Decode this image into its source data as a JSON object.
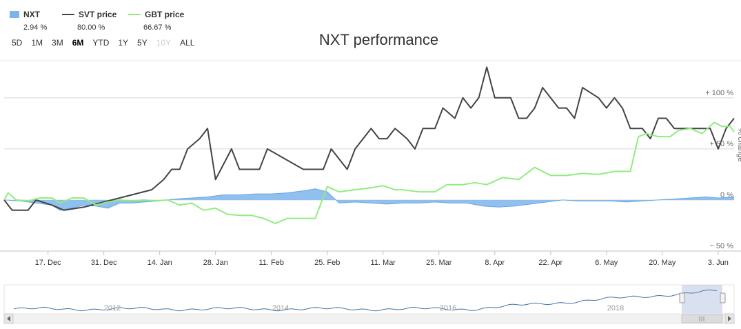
{
  "chart_data": {
    "type": "line",
    "title": "NXT performance",
    "ylabel": "% change",
    "ylim": [
      -50,
      135
    ],
    "y_ticks": [
      "− 50 %",
      "0 %",
      "+ 50 %",
      "+ 100 %"
    ],
    "y_tick_values": [
      -50,
      0,
      50,
      100
    ],
    "x_range": [
      "2017-12-06",
      "2018-06-07"
    ],
    "x_ticks": [
      {
        "label": "17. Dec",
        "date": "2017-12-17"
      },
      {
        "label": "31. Dec",
        "date": "2017-12-31"
      },
      {
        "label": "14. Jan",
        "date": "2018-01-14"
      },
      {
        "label": "28. Jan",
        "date": "2018-01-28"
      },
      {
        "label": "11. Feb",
        "date": "2018-02-11"
      },
      {
        "label": "25. Feb",
        "date": "2018-02-25"
      },
      {
        "label": "11. Mar",
        "date": "2018-03-11"
      },
      {
        "label": "25. Mar",
        "date": "2018-03-25"
      },
      {
        "label": "8. Apr",
        "date": "2018-04-08"
      },
      {
        "label": "22. Apr",
        "date": "2018-04-22"
      },
      {
        "label": "6. May",
        "date": "2018-05-06"
      },
      {
        "label": "20. May",
        "date": "2018-05-20"
      },
      {
        "label": "3. Jun",
        "date": "2018-06-03"
      }
    ],
    "grid": true,
    "legend_position": "top-left",
    "series": [
      {
        "name": "NXT",
        "kind": "area",
        "color": "#7cb5ec",
        "last_value": "2.94 %",
        "points": [
          [
            "2017-12-06",
            0
          ],
          [
            "2017-12-10",
            -1
          ],
          [
            "2017-12-14",
            -3
          ],
          [
            "2017-12-18",
            -5
          ],
          [
            "2017-12-20",
            -10
          ],
          [
            "2017-12-23",
            -8
          ],
          [
            "2017-12-26",
            -5
          ],
          [
            "2017-12-29",
            -6
          ],
          [
            "2018-01-01",
            -8
          ],
          [
            "2018-01-04",
            -3
          ],
          [
            "2018-01-07",
            -3
          ],
          [
            "2018-01-10",
            -2
          ],
          [
            "2018-01-14",
            -1
          ],
          [
            "2018-01-18",
            1
          ],
          [
            "2018-01-22",
            2
          ],
          [
            "2018-01-26",
            3
          ],
          [
            "2018-01-30",
            5
          ],
          [
            "2018-02-03",
            5
          ],
          [
            "2018-02-07",
            6
          ],
          [
            "2018-02-11",
            6
          ],
          [
            "2018-02-15",
            7
          ],
          [
            "2018-02-19",
            9
          ],
          [
            "2018-02-22",
            11
          ],
          [
            "2018-02-25",
            8
          ],
          [
            "2018-02-28",
            -3
          ],
          [
            "2018-03-04",
            -2
          ],
          [
            "2018-03-08",
            -3
          ],
          [
            "2018-03-12",
            -4
          ],
          [
            "2018-03-16",
            -3
          ],
          [
            "2018-03-20",
            -3
          ],
          [
            "2018-03-24",
            -2
          ],
          [
            "2018-03-28",
            -3
          ],
          [
            "2018-04-01",
            -3
          ],
          [
            "2018-04-05",
            -6
          ],
          [
            "2018-04-09",
            -7
          ],
          [
            "2018-04-13",
            -6
          ],
          [
            "2018-04-17",
            -4
          ],
          [
            "2018-04-21",
            -2
          ],
          [
            "2018-04-25",
            0
          ],
          [
            "2018-04-29",
            -1
          ],
          [
            "2018-05-03",
            -1
          ],
          [
            "2018-05-07",
            -1
          ],
          [
            "2018-05-11",
            -2
          ],
          [
            "2018-05-15",
            -1
          ],
          [
            "2018-05-19",
            0
          ],
          [
            "2018-05-23",
            1
          ],
          [
            "2018-05-27",
            2
          ],
          [
            "2018-05-31",
            3
          ],
          [
            "2018-06-03",
            2
          ],
          [
            "2018-06-07",
            2.94
          ]
        ]
      },
      {
        "name": "SVT price",
        "kind": "line",
        "color": "#434348",
        "last_value": "80.00 %",
        "points": [
          [
            "2017-12-06",
            0
          ],
          [
            "2017-12-08",
            -10
          ],
          [
            "2017-12-12",
            -10
          ],
          [
            "2017-12-14",
            0
          ],
          [
            "2017-12-18",
            -5
          ],
          [
            "2017-12-21",
            -10
          ],
          [
            "2017-12-26",
            -7
          ],
          [
            "2018-01-12",
            10
          ],
          [
            "2018-01-15",
            20
          ],
          [
            "2018-01-17",
            30
          ],
          [
            "2018-01-19",
            30
          ],
          [
            "2018-01-21",
            50
          ],
          [
            "2018-01-24",
            60
          ],
          [
            "2018-01-26",
            70
          ],
          [
            "2018-01-28",
            20
          ],
          [
            "2018-02-01",
            50
          ],
          [
            "2018-02-03",
            30
          ],
          [
            "2018-02-08",
            30
          ],
          [
            "2018-02-10",
            50
          ],
          [
            "2018-02-19",
            30
          ],
          [
            "2018-02-24",
            30
          ],
          [
            "2018-02-26",
            50
          ],
          [
            "2018-03-02",
            30
          ],
          [
            "2018-03-04",
            50
          ],
          [
            "2018-03-08",
            70
          ],
          [
            "2018-03-10",
            60
          ],
          [
            "2018-03-12",
            60
          ],
          [
            "2018-03-14",
            70
          ],
          [
            "2018-03-17",
            60
          ],
          [
            "2018-03-19",
            50
          ],
          [
            "2018-03-21",
            70
          ],
          [
            "2018-03-24",
            70
          ],
          [
            "2018-03-26",
            90
          ],
          [
            "2018-03-29",
            80
          ],
          [
            "2018-03-31",
            100
          ],
          [
            "2018-04-02",
            90
          ],
          [
            "2018-04-04",
            100
          ],
          [
            "2018-04-06",
            130
          ],
          [
            "2018-04-08",
            100
          ],
          [
            "2018-04-12",
            100
          ],
          [
            "2018-04-14",
            80
          ],
          [
            "2018-04-16",
            80
          ],
          [
            "2018-04-18",
            90
          ],
          [
            "2018-04-20",
            110
          ],
          [
            "2018-04-24",
            90
          ],
          [
            "2018-04-26",
            90
          ],
          [
            "2018-04-28",
            80
          ],
          [
            "2018-04-30",
            110
          ],
          [
            "2018-05-04",
            100
          ],
          [
            "2018-05-06",
            90
          ],
          [
            "2018-05-08",
            100
          ],
          [
            "2018-05-10",
            90
          ],
          [
            "2018-05-12",
            70
          ],
          [
            "2018-05-15",
            70
          ],
          [
            "2018-05-17",
            60
          ],
          [
            "2018-05-19",
            80
          ],
          [
            "2018-05-21",
            80
          ],
          [
            "2018-05-23",
            70
          ],
          [
            "2018-06-01",
            70
          ],
          [
            "2018-06-03",
            50
          ],
          [
            "2018-06-05",
            70
          ],
          [
            "2018-06-07",
            80
          ]
        ]
      },
      {
        "name": "GBT price",
        "kind": "line",
        "color": "#90ed7d",
        "last_value": "66.67 %",
        "points": [
          [
            "2017-12-06",
            0
          ],
          [
            "2017-12-07",
            7
          ],
          [
            "2017-12-09",
            0
          ],
          [
            "2017-12-12",
            -1
          ],
          [
            "2017-12-15",
            2
          ],
          [
            "2017-12-18",
            2
          ],
          [
            "2017-12-20",
            -3
          ],
          [
            "2017-12-23",
            2
          ],
          [
            "2017-12-26",
            2
          ],
          [
            "2017-12-29",
            -5
          ],
          [
            "2018-01-01",
            -2
          ],
          [
            "2018-01-04",
            0
          ],
          [
            "2018-01-07",
            -1
          ],
          [
            "2018-01-10",
            0
          ],
          [
            "2018-01-13",
            -1
          ],
          [
            "2018-01-16",
            0
          ],
          [
            "2018-01-19",
            -5
          ],
          [
            "2018-01-22",
            -3
          ],
          [
            "2018-01-25",
            -10
          ],
          [
            "2018-01-28",
            -8
          ],
          [
            "2018-01-31",
            -14
          ],
          [
            "2018-02-03",
            -15
          ],
          [
            "2018-02-06",
            -15
          ],
          [
            "2018-02-09",
            -18
          ],
          [
            "2018-02-12",
            -23
          ],
          [
            "2018-02-15",
            -18
          ],
          [
            "2018-02-18",
            -18
          ],
          [
            "2018-02-22",
            -18
          ],
          [
            "2018-02-25",
            13
          ],
          [
            "2018-02-28",
            8
          ],
          [
            "2018-03-04",
            10
          ],
          [
            "2018-03-08",
            12
          ],
          [
            "2018-03-11",
            14
          ],
          [
            "2018-03-14",
            10
          ],
          [
            "2018-03-16",
            10
          ],
          [
            "2018-03-20",
            8
          ],
          [
            "2018-03-24",
            8
          ],
          [
            "2018-03-27",
            15
          ],
          [
            "2018-03-31",
            15
          ],
          [
            "2018-04-03",
            17
          ],
          [
            "2018-04-06",
            15
          ],
          [
            "2018-04-10",
            22
          ],
          [
            "2018-04-14",
            20
          ],
          [
            "2018-04-18",
            32
          ],
          [
            "2018-04-22",
            24
          ],
          [
            "2018-04-26",
            24
          ],
          [
            "2018-04-30",
            26
          ],
          [
            "2018-05-04",
            25
          ],
          [
            "2018-05-08",
            28
          ],
          [
            "2018-05-12",
            28
          ],
          [
            "2018-05-14",
            62
          ],
          [
            "2018-05-16",
            65
          ],
          [
            "2018-05-19",
            62
          ],
          [
            "2018-05-22",
            62
          ],
          [
            "2018-05-24",
            68
          ],
          [
            "2018-05-27",
            70
          ],
          [
            "2018-05-30",
            65
          ],
          [
            "2018-06-02",
            76
          ],
          [
            "2018-06-04",
            72
          ],
          [
            "2018-06-06",
            72
          ],
          [
            "2018-06-07",
            66.67
          ]
        ]
      }
    ],
    "navigator": {
      "year_labels": [
        "2012",
        "2014",
        "2016",
        "2018"
      ],
      "scrollbar_label": "III"
    }
  },
  "legend": {
    "items": [
      {
        "name": "NXT",
        "value": "2.94 %",
        "color": "#7cb5ec"
      },
      {
        "name": "SVT price",
        "value": "80.00 %",
        "color": "#434348"
      },
      {
        "name": "GBT price",
        "value": "66.67 %",
        "color": "#90ed7d"
      }
    ]
  },
  "range_selector": {
    "buttons": [
      "5D",
      "1M",
      "3M",
      "6M",
      "YTD",
      "1Y",
      "5Y",
      "10Y",
      "ALL"
    ],
    "active": "6M",
    "disabled": [
      "10Y"
    ]
  }
}
